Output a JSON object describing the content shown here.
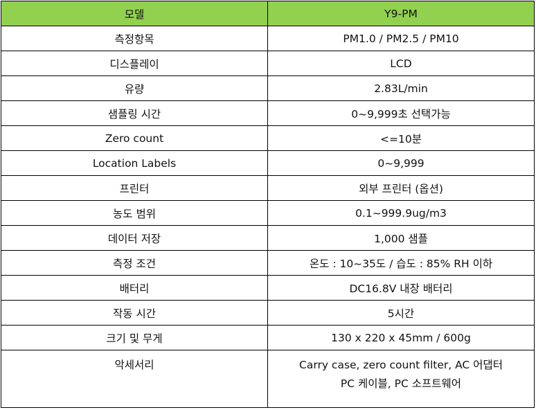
{
  "header_color": "#92d050",
  "header": {
    "label": "모델",
    "value": "Y9-PM"
  },
  "rows": [
    {
      "label": "측정항목",
      "value": "PM1.0 / PM2.5 / PM10"
    },
    {
      "label": "디스플레이",
      "value": "LCD"
    },
    {
      "label": "유량",
      "value": "2.83L/min"
    },
    {
      "label": "샘플링 시간",
      "value": "0~9,999초 선택가능"
    },
    {
      "label": "Zero count",
      "value": "<=10분"
    },
    {
      "label": "Location Labels",
      "value": "0~9,999"
    },
    {
      "label": "프린터",
      "value": "외부 프린터 (옵션)"
    },
    {
      "label": "농도 범위",
      "value": "0.1~999.9ug/m3"
    },
    {
      "label": "데이터 저장",
      "value": "1,000 샘플"
    },
    {
      "label": "측정 조건",
      "value": "온도 : 10~35도 / 습도 : 85% RH 이하"
    },
    {
      "label": "배터리",
      "value": "DC16.8V 내장 배터리"
    },
    {
      "label": "작동 시간",
      "value": "5시간"
    },
    {
      "label": "크기 및 무게",
      "value": "130 x 220 x 45mm / 600g"
    },
    {
      "label": "악세서리",
      "value_line1": "Carry case, zero count filter, AC 어댑터",
      "value_line2": "PC 케이블, PC 소프트웨어"
    }
  ]
}
